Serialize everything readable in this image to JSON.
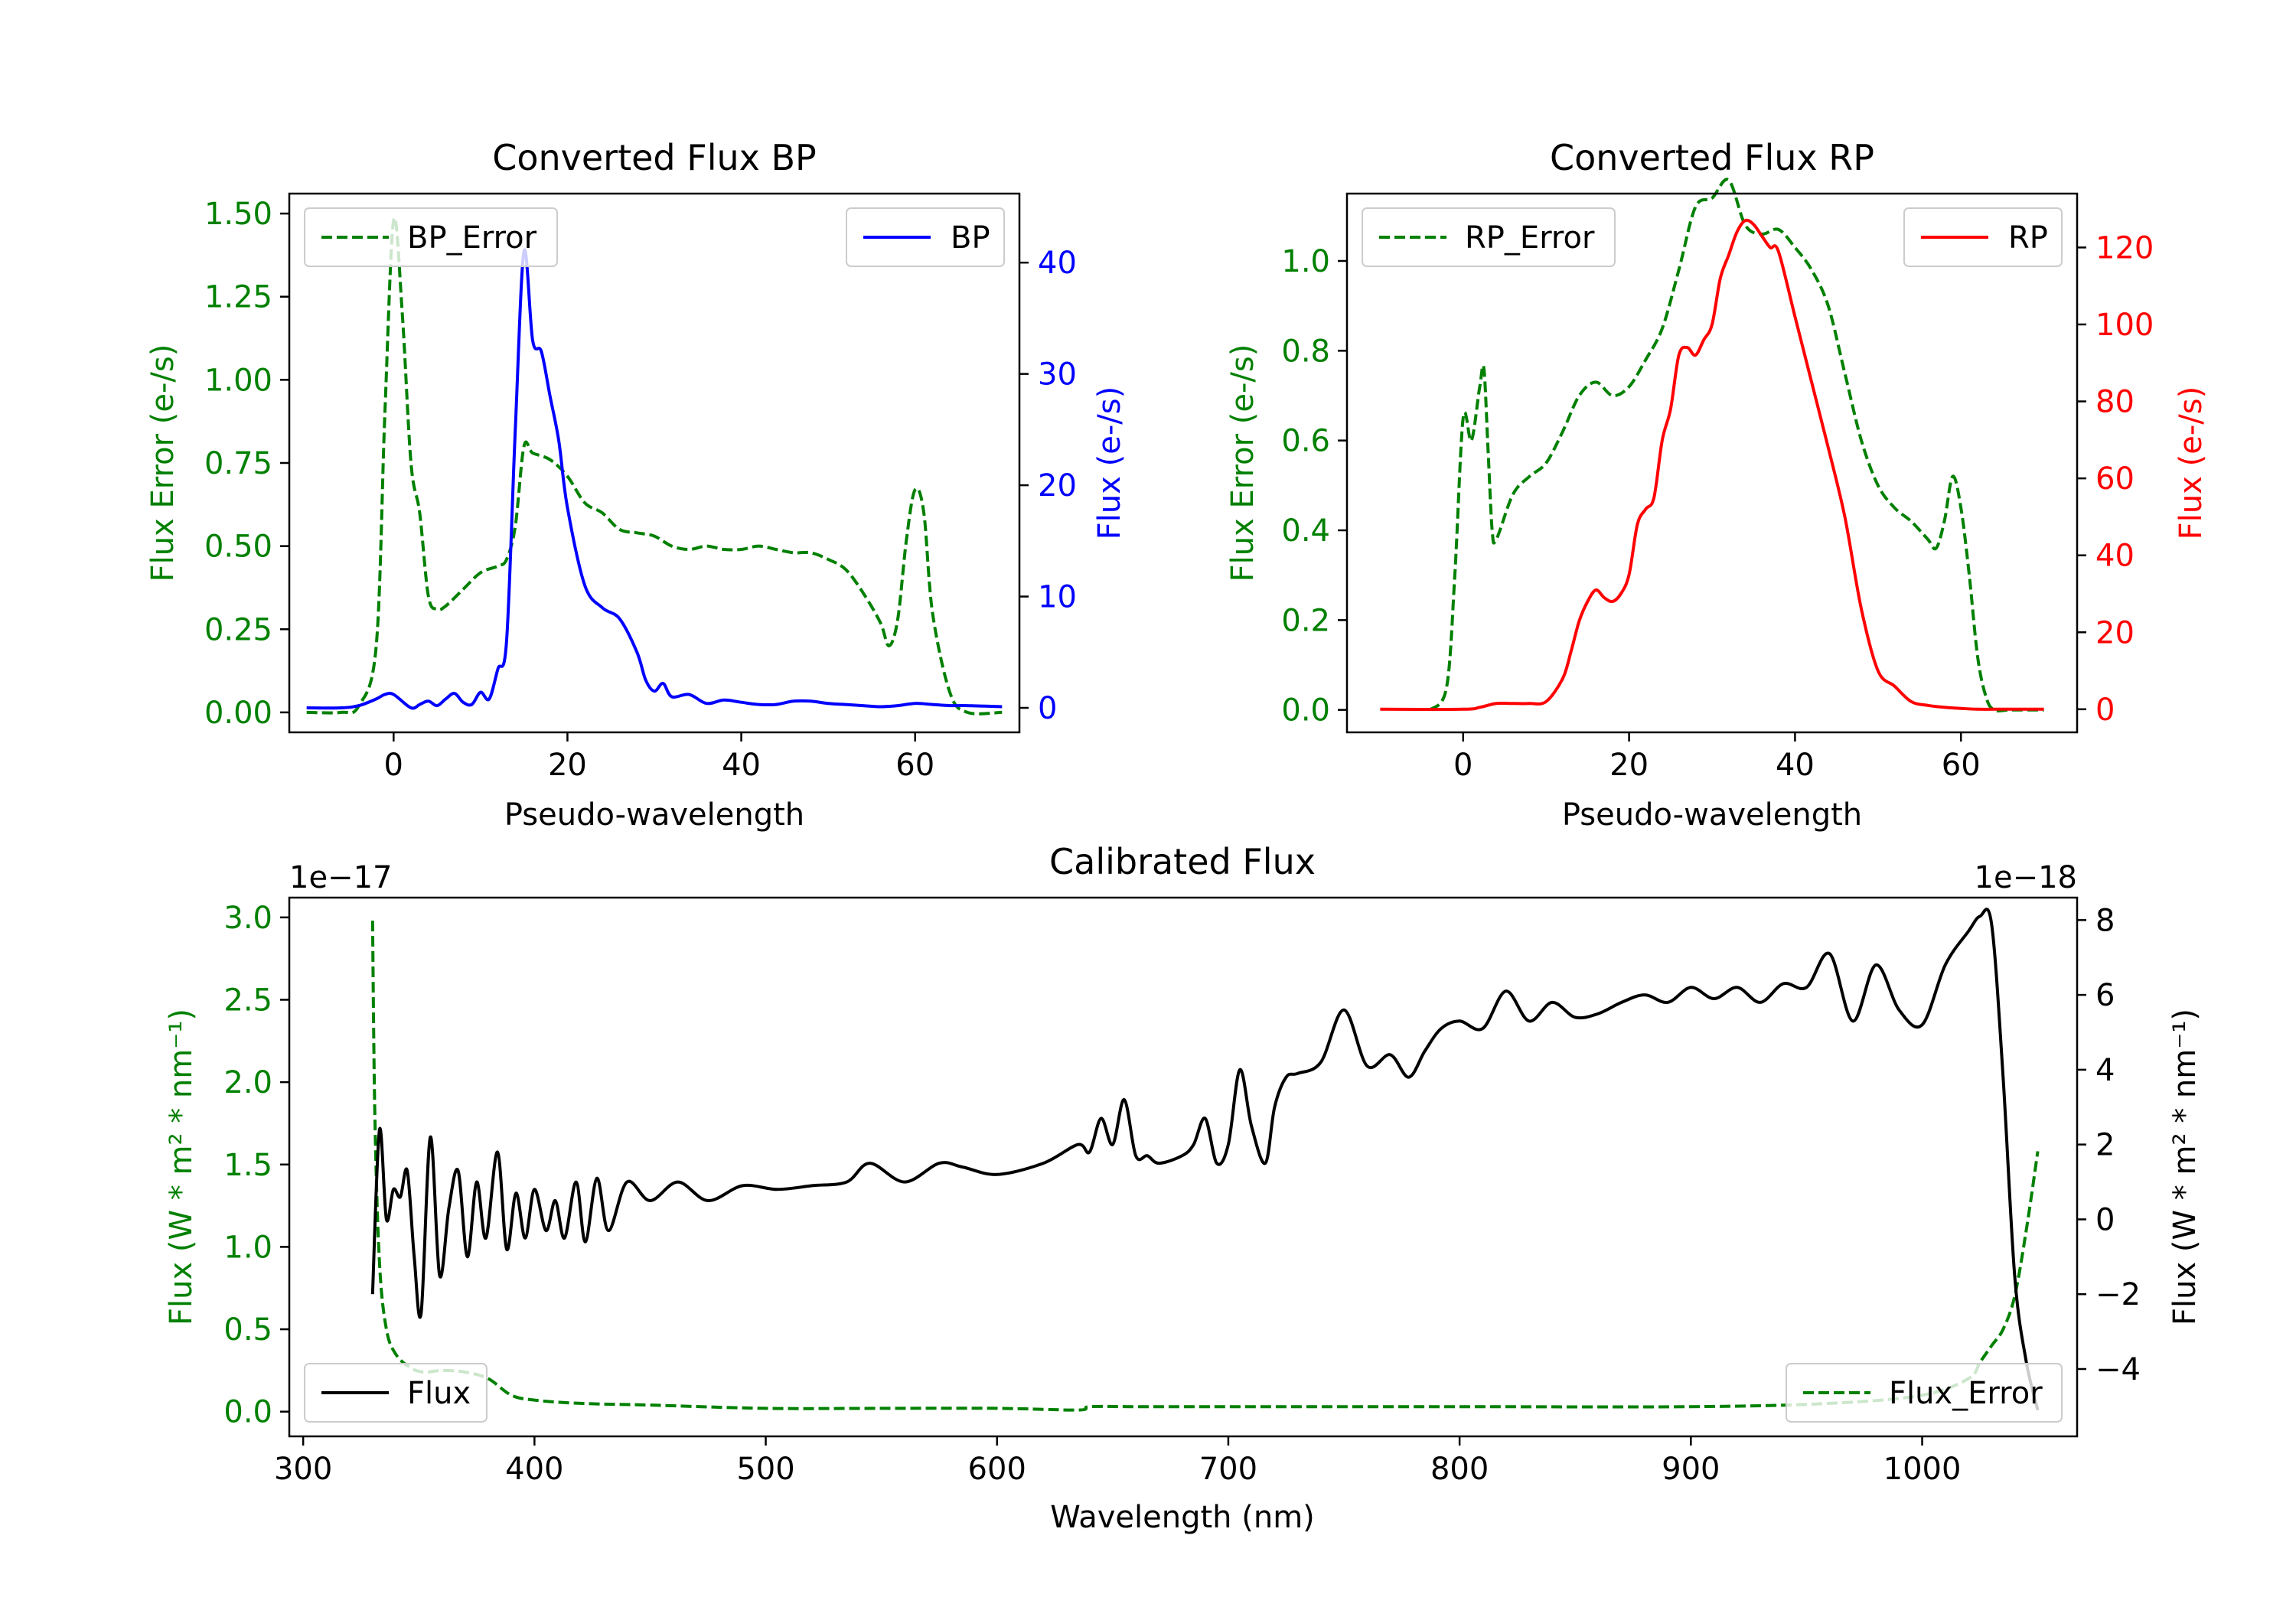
{
  "colors": {
    "green": "#008000",
    "blue": "#0000ff",
    "red": "#ff0000",
    "black": "#000000"
  },
  "chart_data": [
    {
      "id": "bp",
      "type": "line",
      "title": "Converted Flux BP",
      "xlabel": "Pseudo-wavelength",
      "xlim": [
        -12,
        72
      ],
      "xticks": [
        0,
        20,
        40,
        60
      ],
      "left_axis": {
        "label": "Flux Error (e-/s)",
        "color": "#008000",
        "ylim": [
          -0.06,
          1.56
        ],
        "ticks": [
          0.0,
          0.25,
          0.5,
          0.75,
          1.0,
          1.25,
          1.5
        ],
        "tick_labels": [
          "0.00",
          "0.25",
          "0.50",
          "0.75",
          "1.00",
          "1.25",
          "1.50"
        ]
      },
      "right_axis": {
        "label": "Flux (e-/s)",
        "color": "#0000ff",
        "ylim": [
          -2.2,
          46.2
        ],
        "ticks": [
          0,
          10,
          20,
          30,
          40
        ],
        "tick_labels": [
          "0",
          "10",
          "20",
          "30",
          "40"
        ]
      },
      "series": [
        {
          "name": "BP_Error",
          "axis": "left",
          "style": "dashed",
          "color": "#008000",
          "legend": "top-left",
          "x": [
            -10,
            -6,
            -4,
            -2,
            -1,
            0,
            1,
            2,
            3,
            4,
            5,
            6,
            8,
            10,
            12,
            13,
            14,
            15,
            16,
            18,
            20,
            22,
            24,
            26,
            28,
            30,
            32,
            34,
            36,
            38,
            40,
            42,
            44,
            46,
            48,
            50,
            52,
            54,
            56,
            57,
            58,
            59,
            60,
            61,
            62,
            64,
            66,
            70
          ],
          "y": [
            0.0,
            0.0,
            0.02,
            0.2,
            0.9,
            1.48,
            1.2,
            0.75,
            0.6,
            0.35,
            0.31,
            0.32,
            0.37,
            0.42,
            0.44,
            0.46,
            0.56,
            0.8,
            0.78,
            0.76,
            0.71,
            0.63,
            0.6,
            0.55,
            0.54,
            0.53,
            0.5,
            0.49,
            0.5,
            0.49,
            0.49,
            0.5,
            0.49,
            0.48,
            0.48,
            0.46,
            0.43,
            0.36,
            0.27,
            0.2,
            0.28,
            0.52,
            0.67,
            0.6,
            0.3,
            0.06,
            0.0,
            0.0
          ]
        },
        {
          "name": "BP",
          "axis": "right",
          "style": "solid",
          "color": "#0000ff",
          "legend": "top-right",
          "x": [
            -10,
            -6,
            -4,
            -2,
            -1,
            0,
            2,
            3,
            4,
            5,
            6,
            7,
            8,
            9,
            10,
            11,
            12,
            13,
            14,
            15,
            16,
            17,
            18,
            19,
            20,
            22,
            24,
            26,
            28,
            29,
            30,
            31,
            32,
            34,
            36,
            38,
            40,
            42,
            44,
            46,
            48,
            50,
            52,
            54,
            56,
            58,
            60,
            62,
            64,
            66,
            70
          ],
          "y": [
            0,
            0,
            0.2,
            0.8,
            1.2,
            1.2,
            0,
            0.3,
            0.6,
            0.2,
            0.8,
            1.3,
            0.5,
            0.3,
            1.4,
            0.8,
            3.5,
            6,
            25,
            41,
            33,
            32,
            28,
            24,
            18,
            11,
            9,
            8,
            5,
            2.5,
            1.5,
            2.2,
            1.0,
            1.2,
            0.4,
            0.7,
            0.5,
            0.3,
            0.3,
            0.6,
            0.6,
            0.4,
            0.3,
            0.2,
            0.1,
            0.2,
            0.4,
            0.3,
            0.2,
            0.2,
            0.1
          ]
        }
      ]
    },
    {
      "id": "rp",
      "type": "line",
      "title": "Converted Flux RP",
      "xlabel": "Pseudo-wavelength",
      "xlim": [
        -14,
        74
      ],
      "xticks": [
        0,
        20,
        40,
        60
      ],
      "left_axis": {
        "label": "Flux Error (e-/s)",
        "color": "#008000",
        "ylim": [
          -0.05,
          1.15
        ],
        "ticks": [
          0.0,
          0.2,
          0.4,
          0.6,
          0.8,
          1.0
        ],
        "tick_labels": [
          "0.0",
          "0.2",
          "0.4",
          "0.6",
          "0.8",
          "1.0"
        ]
      },
      "right_axis": {
        "label": "Flux (e-/s)",
        "color": "#ff0000",
        "ylim": [
          -6,
          134
        ],
        "ticks": [
          0,
          20,
          40,
          60,
          80,
          100,
          120
        ],
        "tick_labels": [
          "0",
          "20",
          "40",
          "60",
          "80",
          "100",
          "120"
        ]
      },
      "series": [
        {
          "name": "RP_Error",
          "axis": "left",
          "style": "dashed",
          "color": "#008000",
          "legend": "top-left",
          "x": [
            -4,
            -2,
            -1,
            0,
            1,
            2,
            2.5,
            3,
            3.5,
            4,
            6,
            8,
            10,
            12,
            14,
            16,
            18,
            20,
            22,
            24,
            26,
            28,
            30,
            32,
            34,
            36,
            38,
            40,
            42,
            44,
            46,
            48,
            50,
            52,
            54,
            56,
            57,
            58,
            59,
            60,
            61,
            62,
            63,
            64,
            66,
            70
          ],
          "y": [
            0.0,
            0.05,
            0.3,
            0.65,
            0.6,
            0.72,
            0.76,
            0.58,
            0.4,
            0.38,
            0.48,
            0.52,
            0.55,
            0.62,
            0.7,
            0.73,
            0.7,
            0.72,
            0.78,
            0.85,
            0.98,
            1.12,
            1.14,
            1.18,
            1.08,
            1.06,
            1.07,
            1.03,
            0.98,
            0.9,
            0.75,
            0.6,
            0.5,
            0.45,
            0.42,
            0.38,
            0.36,
            0.42,
            0.52,
            0.45,
            0.3,
            0.12,
            0.03,
            0.0,
            0.0,
            0.0
          ]
        },
        {
          "name": "RP",
          "axis": "right",
          "style": "solid",
          "color": "#ff0000",
          "legend": "top-right",
          "x": [
            -10,
            0,
            2,
            4,
            6,
            8,
            10,
            12,
            13,
            14,
            15,
            16,
            17,
            18,
            19,
            20,
            21,
            22,
            23,
            24,
            25,
            26,
            27,
            28,
            29,
            30,
            31,
            32,
            33,
            34,
            35,
            36,
            37,
            38,
            40,
            42,
            44,
            46,
            48,
            50,
            52,
            54,
            56,
            58,
            60,
            62,
            64,
            66,
            70
          ],
          "y": [
            0,
            0,
            0.5,
            1.5,
            1.5,
            1.5,
            2,
            8,
            15,
            23,
            28,
            31,
            29,
            28,
            30,
            35,
            48,
            52,
            55,
            70,
            78,
            92,
            94,
            92,
            96,
            100,
            112,
            118,
            124,
            127,
            126,
            123,
            120,
            119,
            102,
            85,
            68,
            50,
            26,
            10,
            6,
            2,
            1,
            0.5,
            0.2,
            0,
            0,
            0,
            0
          ]
        }
      ]
    },
    {
      "id": "cal",
      "type": "line",
      "title": "Calibrated Flux",
      "xlabel": "Wavelength (nm)",
      "xlim": [
        294,
        1067
      ],
      "xticks": [
        300,
        400,
        500,
        600,
        700,
        800,
        900,
        1000
      ],
      "left_axis": {
        "label": "Flux (W * m² * nm⁻¹)",
        "color": "#008000",
        "offset_text": "1e−17",
        "ylim": [
          -0.15,
          3.12
        ],
        "ticks": [
          0.0,
          0.5,
          1.0,
          1.5,
          2.0,
          2.5,
          3.0
        ],
        "tick_labels": [
          "0.0",
          "0.5",
          "1.0",
          "1.5",
          "2.0",
          "2.5",
          "3.0"
        ]
      },
      "right_axis": {
        "label": "Flux (W * m² * nm⁻¹)",
        "color": "#000000",
        "offset_text": "1e−18",
        "ylim": [
          -5.8,
          8.6
        ],
        "ticks": [
          -4,
          -2,
          0,
          2,
          4,
          6,
          8
        ],
        "tick_labels": [
          "−4",
          "−2",
          "0",
          "2",
          "4",
          "6",
          "8"
        ]
      },
      "series": [
        {
          "name": "Flux_Error",
          "axis": "left",
          "style": "dashed",
          "color": "#008000",
          "legend": "bottom-right",
          "x": [
            330,
            331,
            333,
            336,
            340,
            346,
            352,
            360,
            370,
            380,
            390,
            400,
            420,
            450,
            500,
            550,
            600,
            635,
            640,
            660,
            700,
            800,
            900,
            960,
            1000,
            1020,
            1025,
            1030,
            1035,
            1040,
            1045,
            1050
          ],
          "y": [
            2.98,
            1.8,
            0.9,
            0.5,
            0.35,
            0.27,
            0.24,
            0.25,
            0.24,
            0.2,
            0.1,
            0.07,
            0.05,
            0.04,
            0.02,
            0.02,
            0.02,
            0.01,
            0.03,
            0.03,
            0.03,
            0.03,
            0.03,
            0.05,
            0.1,
            0.2,
            0.3,
            0.4,
            0.5,
            0.7,
            1.1,
            1.58
          ]
        },
        {
          "name": "Flux",
          "axis": "right",
          "style": "solid",
          "color": "#000000",
          "legend": "bottom-left",
          "x": [
            330,
            333,
            336,
            339,
            342,
            345,
            348,
            351,
            355,
            359,
            363,
            367,
            371,
            375,
            379,
            384,
            388,
            392,
            396,
            400,
            405,
            409,
            413,
            418,
            422,
            427,
            432,
            440,
            450,
            462,
            475,
            490,
            505,
            520,
            535,
            545,
            560,
            575,
            585,
            600,
            620,
            635,
            640,
            645,
            650,
            655,
            660,
            665,
            670,
            680,
            685,
            690,
            695,
            700,
            705,
            710,
            716,
            720,
            725,
            730,
            740,
            750,
            760,
            770,
            778,
            785,
            792,
            800,
            810,
            820,
            830,
            840,
            850,
            860,
            870,
            880,
            890,
            900,
            910,
            920,
            930,
            940,
            950,
            960,
            970,
            980,
            990,
            1000,
            1010,
            1020,
            1025,
            1030,
            1035,
            1040,
            1045,
            1050
          ],
          "y": [
            -2.0,
            2.4,
            0.0,
            0.8,
            0.6,
            1.3,
            -1.0,
            -2.5,
            2.2,
            -1.5,
            0.3,
            1.3,
            -1.0,
            1.0,
            -0.5,
            1.8,
            -0.8,
            0.7,
            -0.5,
            0.8,
            -0.3,
            0.5,
            -0.5,
            1.0,
            -0.6,
            1.1,
            -0.3,
            1.0,
            0.5,
            1.0,
            0.5,
            0.9,
            0.8,
            0.9,
            1.0,
            1.5,
            1.0,
            1.5,
            1.4,
            1.2,
            1.5,
            2.0,
            1.8,
            2.7,
            2.0,
            3.2,
            1.7,
            1.7,
            1.5,
            1.7,
            2.0,
            2.7,
            1.5,
            2.0,
            4.0,
            2.5,
            1.5,
            3.0,
            3.8,
            3.9,
            4.2,
            5.6,
            4.1,
            4.4,
            3.8,
            4.5,
            5.1,
            5.3,
            5.1,
            6.1,
            5.3,
            5.8,
            5.4,
            5.5,
            5.8,
            6.0,
            5.8,
            6.2,
            5.9,
            6.2,
            5.8,
            6.3,
            6.2,
            7.1,
            5.3,
            6.8,
            5.6,
            5.2,
            6.8,
            7.7,
            8.1,
            7.9,
            3.8,
            -1.5,
            -3.8,
            -5.1
          ]
        }
      ]
    }
  ]
}
